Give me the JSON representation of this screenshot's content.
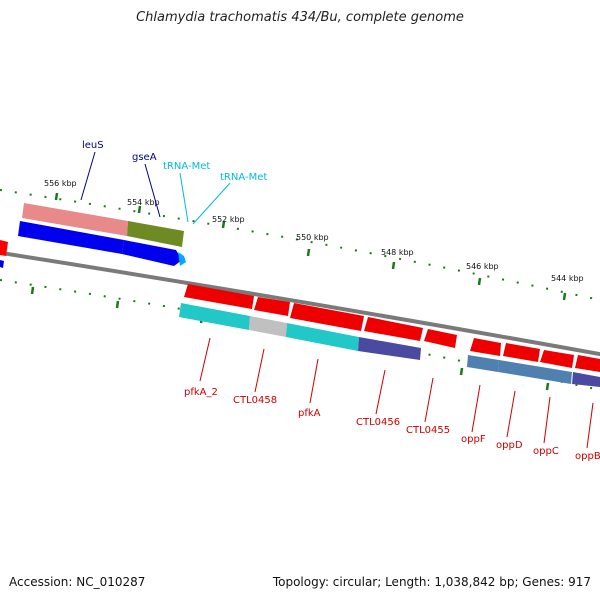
{
  "title": "Chlamydia trachomatis 434/Bu, complete genome",
  "footer": {
    "accession": "Accession: NC_010287",
    "stats": "Topology: circular; Length: 1,038,842 bp; Genes: 917"
  },
  "colors": {
    "backbone": "#808080",
    "tick": "#1a7a1a",
    "label_blue": "#00008b",
    "label_cyan": "#00bcd4",
    "label_red": "#cc0000"
  },
  "ticks": [
    "556 kbp",
    "554 kbp",
    "552 kbp",
    "550 kbp",
    "548 kbp",
    "546 kbp",
    "544 kbp"
  ],
  "top_labels": [
    {
      "text": "leuS",
      "color": "label_blue"
    },
    {
      "text": "gseA",
      "color": "label_blue"
    },
    {
      "text": "tRNA-Met",
      "color": "label_cyan"
    },
    {
      "text": "tRNA-Met",
      "color": "label_cyan"
    }
  ],
  "bottom_labels": [
    {
      "text": "pfkA_2"
    },
    {
      "text": "CTL0458"
    },
    {
      "text": "pfkA"
    },
    {
      "text": "CTL0456"
    },
    {
      "text": "CTL0455"
    },
    {
      "text": "oppF"
    },
    {
      "text": "oppD"
    },
    {
      "text": "oppC"
    },
    {
      "text": "oppB"
    }
  ]
}
